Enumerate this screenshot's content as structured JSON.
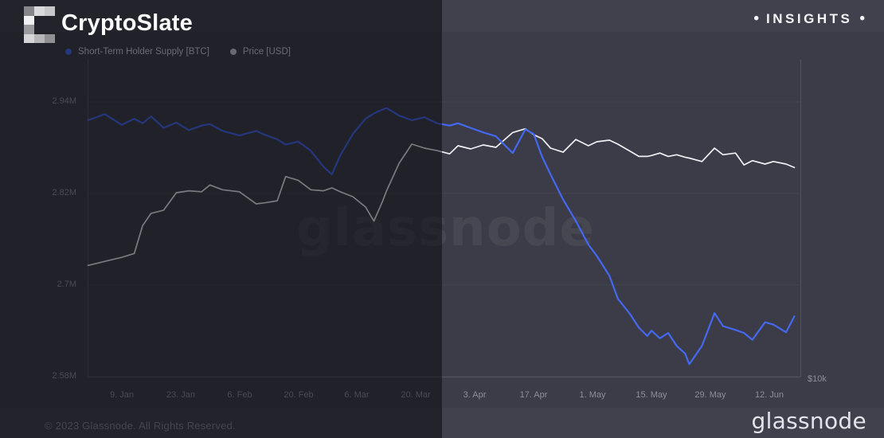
{
  "header": {
    "brand": "CryptoSlate",
    "insights": "INSIGHTS",
    "bullet": "•"
  },
  "legend": [
    {
      "label": "Short-Term Holder Supply [BTC]",
      "color": "#4468ef"
    },
    {
      "label": "Price [USD]",
      "color": "#cdcdd6"
    }
  ],
  "watermark": "glassnode",
  "footer": {
    "copyright": "© 2023 Glassnode. All Rights Reserved.",
    "wordmark": "glassnode"
  },
  "colors": {
    "page_background": "#41414e",
    "chart_background": "#3c3c48",
    "left_overlay": "rgba(6,6,10,0.5)",
    "supply_line": "#4468ef",
    "price_line": "#eff0f4",
    "tick_text": "#8e8e99"
  },
  "chart_data": {
    "type": "line",
    "title": "Bitcoin Short-Term Holder Supply vs Price, Jan–Jun 2023",
    "legend_position": "top-left",
    "grid": "horizontal-faint",
    "x_axis": {
      "unit": "date (2023), days since Jan 1",
      "start_date": "1. Jan",
      "end_date": "18. Jun",
      "ticks": [
        {
          "label": "9. Jan",
          "day": 8
        },
        {
          "label": "23. Jan",
          "day": 22
        },
        {
          "label": "6. Feb",
          "day": 36
        },
        {
          "label": "20. Feb",
          "day": 50
        },
        {
          "label": "6. Mar",
          "day": 64
        },
        {
          "label": "20. Mar",
          "day": 78
        },
        {
          "label": "3. Apr",
          "day": 92
        },
        {
          "label": "17. Apr",
          "day": 106
        },
        {
          "label": "1. May",
          "day": 120
        },
        {
          "label": "15. May",
          "day": 134
        },
        {
          "label": "29. May",
          "day": 148
        },
        {
          "label": "12. Jun",
          "day": 162
        }
      ]
    },
    "y_axis_left": {
      "series": "Short-Term Holder Supply [BTC]",
      "scale": "linear",
      "unit": "million BTC",
      "ticks": [
        {
          "label": "2.94M",
          "value": 2.94
        },
        {
          "label": "2.82M",
          "value": 2.82
        },
        {
          "label": "2.7M",
          "value": 2.7
        },
        {
          "label": "2.58M",
          "value": 2.58
        }
      ]
    },
    "y_axis_right": {
      "series": "Price [USD]",
      "scale": "log",
      "unit": "thousand USD",
      "ticks": [
        {
          "label": "$10k",
          "value": 10
        }
      ]
    },
    "samples": {
      "days_since_jan1": [
        0,
        4,
        8,
        11,
        13,
        15,
        18,
        21,
        24,
        27,
        29,
        32,
        36,
        40,
        42,
        45,
        47,
        50,
        53,
        56,
        58,
        60,
        63,
        66,
        68,
        70,
        71,
        74,
        77,
        80,
        83,
        86,
        88,
        91,
        94,
        97,
        101,
        104,
        106,
        108,
        110,
        113,
        116,
        119,
        121,
        124,
        126,
        129,
        131,
        133,
        134,
        136,
        138,
        140,
        142,
        143,
        146,
        149,
        151,
        154,
        156,
        158,
        161,
        163,
        166,
        168
      ]
    },
    "series": [
      {
        "name": "Short-Term Holder Supply [BTC]",
        "axis": "left",
        "color": "#4468ef",
        "unit": "million BTC",
        "values": [
          2.916,
          2.924,
          2.91,
          2.918,
          2.912,
          2.921,
          2.906,
          2.913,
          2.903,
          2.909,
          2.911,
          2.902,
          2.896,
          2.902,
          2.897,
          2.891,
          2.884,
          2.888,
          2.876,
          2.855,
          2.845,
          2.87,
          2.898,
          2.918,
          2.925,
          2.93,
          2.932,
          2.922,
          2.916,
          2.92,
          2.912,
          2.909,
          2.912,
          2.906,
          2.9,
          2.895,
          2.873,
          2.904,
          2.898,
          2.868,
          2.845,
          2.812,
          2.784,
          2.753,
          2.738,
          2.712,
          2.682,
          2.661,
          2.644,
          2.633,
          2.64,
          2.63,
          2.637,
          2.62,
          2.61,
          2.596,
          2.62,
          2.663,
          2.646,
          2.641,
          2.637,
          2.628,
          2.651,
          2.648,
          2.638,
          2.659
        ]
      },
      {
        "name": "Price [USD]",
        "axis": "right",
        "color": "#eff0f4",
        "unit": "thousand USD",
        "values": [
          16.6,
          16.9,
          17.2,
          17.5,
          19.8,
          20.9,
          21.2,
          22.9,
          23.1,
          23.0,
          23.7,
          23.2,
          23.0,
          21.8,
          21.9,
          22.1,
          24.6,
          24.2,
          23.2,
          23.1,
          23.4,
          23.0,
          22.5,
          21.5,
          20.2,
          22.0,
          23.1,
          26.1,
          28.4,
          27.9,
          27.6,
          27.2,
          28.2,
          27.8,
          28.3,
          28.0,
          29.9,
          30.4,
          29.6,
          29.1,
          27.9,
          27.4,
          29.0,
          28.2,
          28.7,
          28.9,
          28.4,
          27.5,
          26.9,
          26.9,
          27.0,
          27.3,
          26.9,
          27.1,
          26.8,
          26.7,
          26.3,
          27.9,
          27.1,
          27.3,
          25.9,
          26.4,
          26.0,
          26.3,
          26.0,
          25.6
        ]
      }
    ]
  }
}
